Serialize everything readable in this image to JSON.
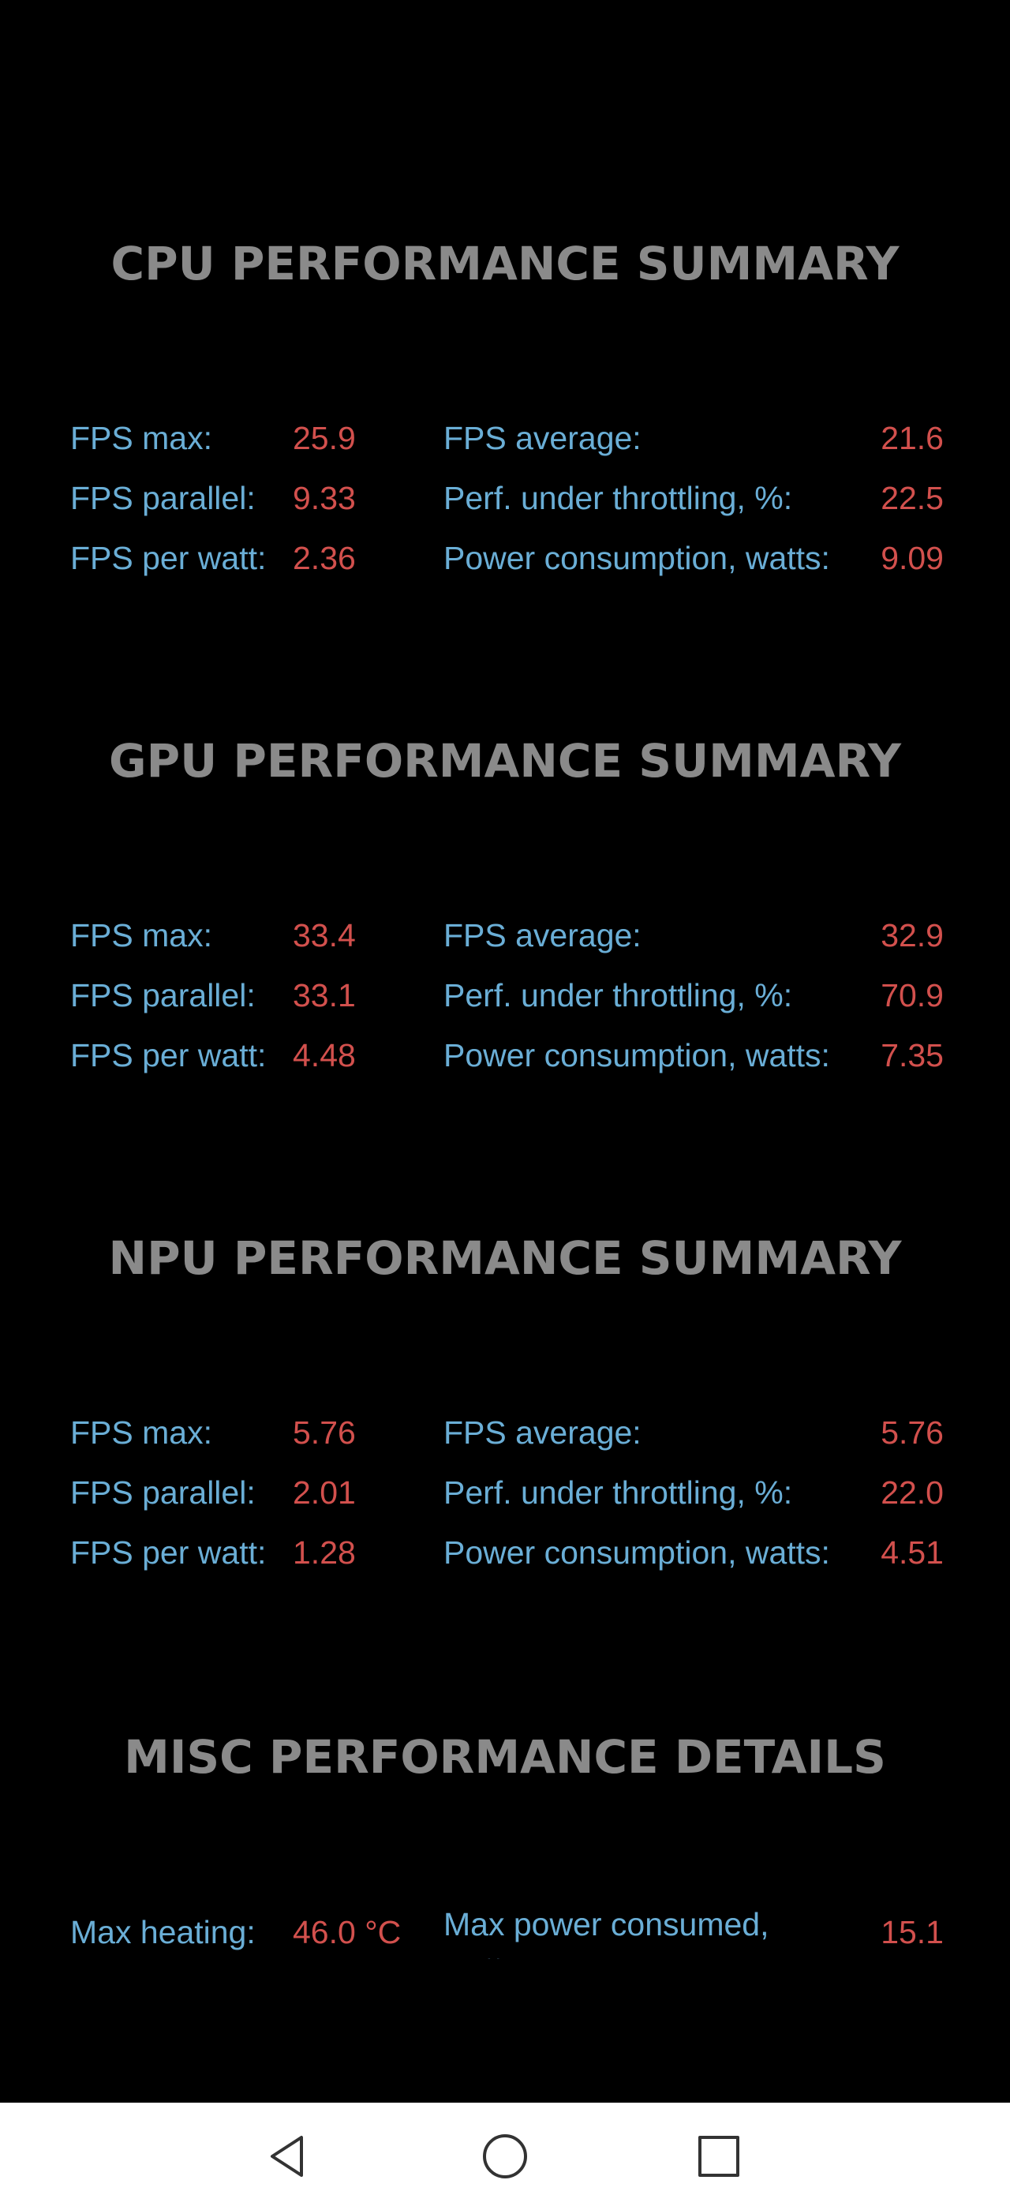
{
  "cpu": {
    "title": "CPU PERFORMANCE SUMMARY",
    "left": [
      {
        "label": "FPS max:",
        "value": "25.9"
      },
      {
        "label": "FPS parallel:",
        "value": "9.33"
      },
      {
        "label": "FPS per watt:",
        "value": "2.36"
      }
    ],
    "right": [
      {
        "label": "FPS average:",
        "value": "21.6"
      },
      {
        "label": "Perf. under throttling, %:",
        "value": "22.5"
      },
      {
        "label": "Power consumption, watts:",
        "value": "9.09"
      }
    ]
  },
  "gpu": {
    "title": "GPU PERFORMANCE SUMMARY",
    "left": [
      {
        "label": "FPS max:",
        "value": "33.4"
      },
      {
        "label": "FPS parallel:",
        "value": "33.1"
      },
      {
        "label": "FPS per watt:",
        "value": "4.48"
      }
    ],
    "right": [
      {
        "label": "FPS average:",
        "value": "32.9"
      },
      {
        "label": "Perf. under throttling, %:",
        "value": "70.9"
      },
      {
        "label": "Power consumption, watts:",
        "value": "7.35"
      }
    ]
  },
  "npu": {
    "title": "NPU PERFORMANCE SUMMARY",
    "left": [
      {
        "label": "FPS max:",
        "value": "5.76"
      },
      {
        "label": "FPS parallel:",
        "value": "2.01"
      },
      {
        "label": "FPS per watt:",
        "value": "1.28"
      }
    ],
    "right": [
      {
        "label": "FPS average:",
        "value": "5.76"
      },
      {
        "label": "Perf. under throttling, %:",
        "value": "22.0"
      },
      {
        "label": "Power consumption, watts:",
        "value": "4.51"
      }
    ]
  },
  "misc": {
    "title": "MISC PERFORMANCE DETAILS",
    "max_heating_label": "Max heating:",
    "max_heating_value": "46.0 °C",
    "max_power_label": "Max power consumed, watts:",
    "max_power_value": "15.1"
  },
  "navbar": {
    "icons": [
      "back-icon",
      "home-icon",
      "recents-icon"
    ]
  },
  "colors": {
    "background": "#000000",
    "title": "#8a8a8a",
    "label": "#6aaed6",
    "value": "#d2504d",
    "navbar_bg": "#ffffff"
  }
}
